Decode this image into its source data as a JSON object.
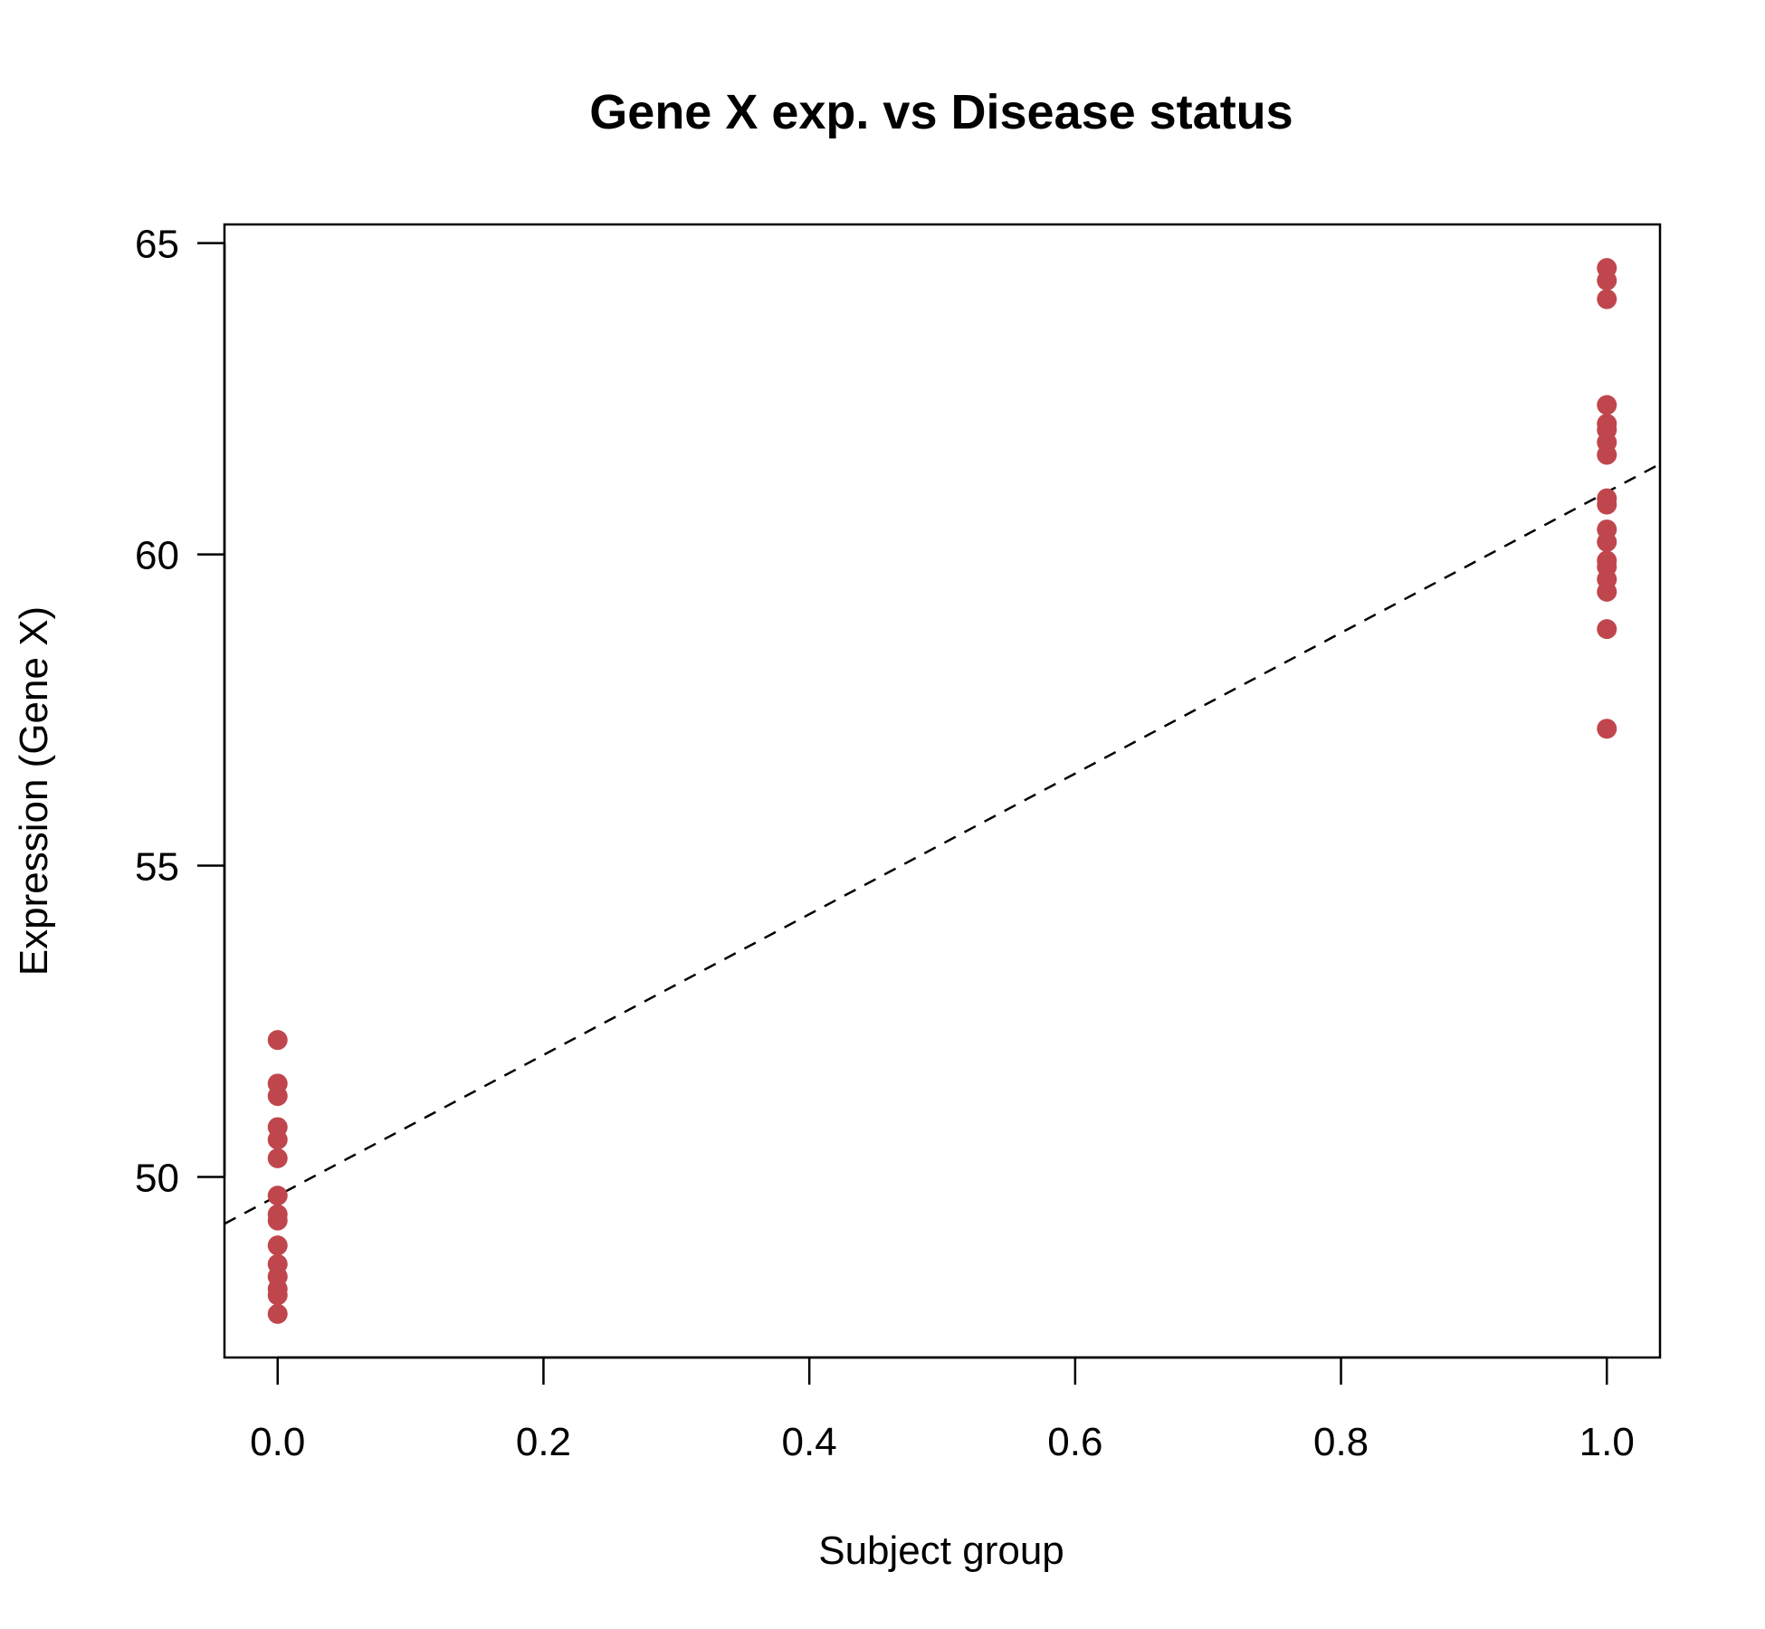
{
  "chart_data": {
    "type": "scatter",
    "title": "Gene X exp. vs Disease status",
    "xlabel": "Subject group",
    "ylabel": "Expression (Gene X)",
    "xlim": [
      -0.04,
      1.04
    ],
    "ylim": [
      47.1,
      65.3
    ],
    "x_ticks": [
      "0.0",
      "0.2",
      "0.4",
      "0.6",
      "0.8",
      "1.0"
    ],
    "y_ticks": [
      "50",
      "55",
      "60",
      "65"
    ],
    "grid": false,
    "point_color": "#c0464d",
    "fit_line": {
      "style": "dashed",
      "color": "#000000",
      "intercept": 49.7,
      "slope": 11.3
    },
    "series": [
      {
        "points": [
          {
            "x": 0,
            "y": 52.2
          },
          {
            "x": 0,
            "y": 51.5
          },
          {
            "x": 0,
            "y": 51.3
          },
          {
            "x": 0,
            "y": 50.8
          },
          {
            "x": 0,
            "y": 50.6
          },
          {
            "x": 0,
            "y": 50.3
          },
          {
            "x": 0,
            "y": 49.7
          },
          {
            "x": 0,
            "y": 49.4
          },
          {
            "x": 0,
            "y": 49.3
          },
          {
            "x": 0,
            "y": 48.9
          },
          {
            "x": 0,
            "y": 48.6
          },
          {
            "x": 0,
            "y": 48.4
          },
          {
            "x": 0,
            "y": 48.2
          },
          {
            "x": 0,
            "y": 48.1
          },
          {
            "x": 0,
            "y": 47.8
          },
          {
            "x": 1,
            "y": 64.6
          },
          {
            "x": 1,
            "y": 64.4
          },
          {
            "x": 1,
            "y": 64.1
          },
          {
            "x": 1,
            "y": 62.4
          },
          {
            "x": 1,
            "y": 62.1
          },
          {
            "x": 1,
            "y": 62.0
          },
          {
            "x": 1,
            "y": 61.8
          },
          {
            "x": 1,
            "y": 61.6
          },
          {
            "x": 1,
            "y": 60.9
          },
          {
            "x": 1,
            "y": 60.8
          },
          {
            "x": 1,
            "y": 60.4
          },
          {
            "x": 1,
            "y": 60.2
          },
          {
            "x": 1,
            "y": 59.9
          },
          {
            "x": 1,
            "y": 59.8
          },
          {
            "x": 1,
            "y": 59.6
          },
          {
            "x": 1,
            "y": 59.4
          },
          {
            "x": 1,
            "y": 58.8
          },
          {
            "x": 1,
            "y": 57.2
          }
        ]
      }
    ]
  }
}
